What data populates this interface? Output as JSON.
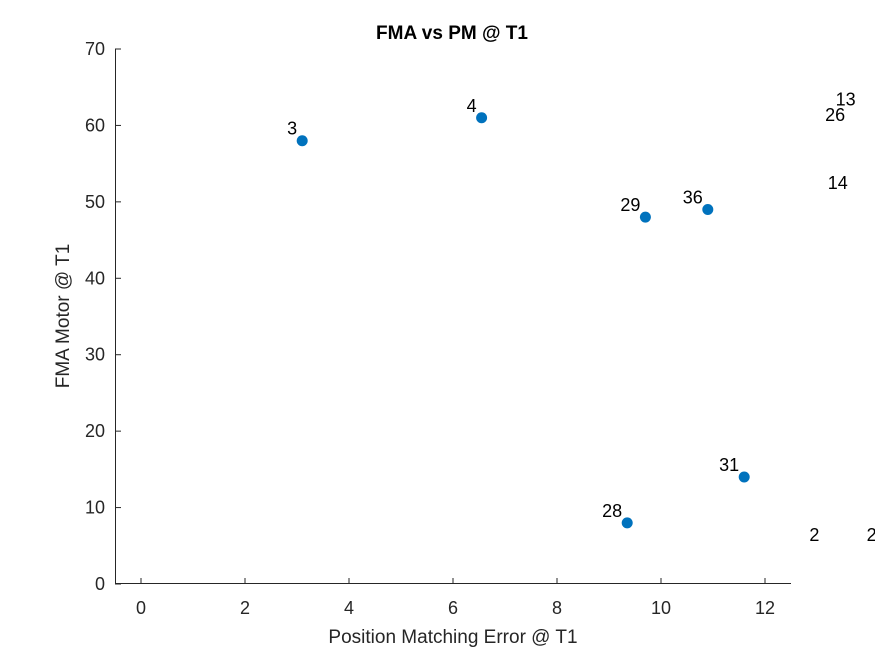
{
  "chart_data": {
    "type": "scatter",
    "title": "FMA vs PM @ T1",
    "xlabel": "Position Matching Error @ T1",
    "ylabel": "FMA Motor @ T1",
    "xlim": [
      -0.5,
      12.5
    ],
    "ylim": [
      0,
      70
    ],
    "xticks": [
      0,
      2,
      4,
      6,
      8,
      10,
      12
    ],
    "yticks": [
      0,
      10,
      20,
      30,
      40,
      50,
      60,
      70
    ],
    "grid": false,
    "marker_color": "#0072BD",
    "points": [
      {
        "label": "3",
        "x": 3.1,
        "y": 58
      },
      {
        "label": "4",
        "x": 6.55,
        "y": 61
      },
      {
        "label": "29",
        "x": 9.7,
        "y": 48
      },
      {
        "label": "36",
        "x": 10.9,
        "y": 49
      },
      {
        "label": "31",
        "x": 11.6,
        "y": 14
      },
      {
        "label": "28",
        "x": 9.35,
        "y": 8
      }
    ],
    "offscreen_labels": [
      {
        "label": "13",
        "x": 13.55,
        "y": 62.6
      },
      {
        "label": "26",
        "x": 13.35,
        "y": 60.6
      },
      {
        "label": "14",
        "x": 13.4,
        "y": 51.7
      },
      {
        "label": "2",
        "x": 12.95,
        "y": 5.6
      },
      {
        "label": "2",
        "x": 14.05,
        "y": 5.6
      }
    ]
  }
}
